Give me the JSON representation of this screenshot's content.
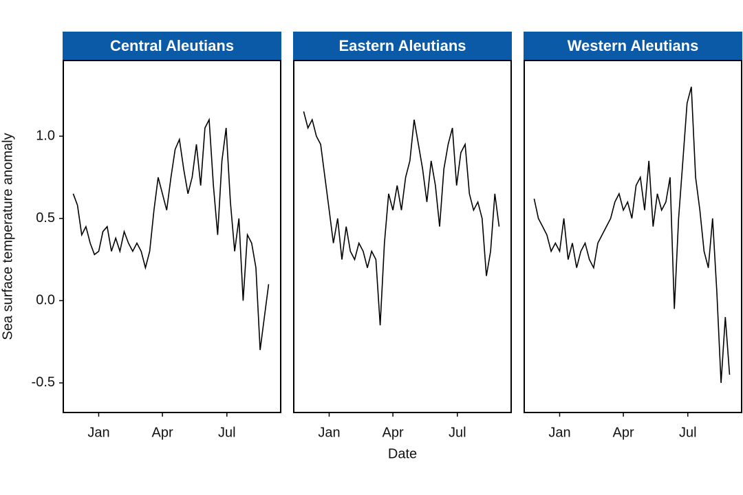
{
  "chart_data": [
    {
      "type": "line",
      "title": "Central Aleutians",
      "color": "#000000",
      "strip_color": "#0a5aa8",
      "x": [
        -36,
        -30,
        -24,
        -18,
        -12,
        -6,
        0,
        6,
        12,
        18,
        24,
        30,
        36,
        42,
        48,
        54,
        60,
        66,
        72,
        78,
        84,
        90,
        96,
        102,
        108,
        114,
        120,
        126,
        132,
        138,
        144,
        150,
        156,
        162,
        168,
        174,
        180,
        186,
        192,
        198,
        204,
        210,
        216,
        222,
        228,
        234,
        240
      ],
      "values": [
        0.65,
        0.58,
        0.4,
        0.45,
        0.35,
        0.28,
        0.3,
        0.42,
        0.45,
        0.3,
        0.38,
        0.3,
        0.42,
        0.35,
        0.3,
        0.35,
        0.3,
        0.2,
        0.3,
        0.55,
        0.75,
        0.65,
        0.55,
        0.75,
        0.92,
        0.98,
        0.8,
        0.65,
        0.75,
        0.95,
        0.7,
        1.05,
        1.1,
        0.7,
        0.4,
        0.85,
        1.05,
        0.6,
        0.3,
        0.5,
        0.0,
        0.4,
        0.35,
        0.2,
        -0.3,
        -0.1,
        0.1
      ],
      "xlim": [
        -50,
        257
      ],
      "xticks": [
        {
          "value": 0,
          "label": "Jan"
        },
        {
          "value": 90,
          "label": "Apr"
        },
        {
          "value": 181,
          "label": "Jul"
        }
      ],
      "ylim": [
        -0.68,
        1.46
      ],
      "yticks": [
        {
          "value": -0.5,
          "label": "-0.5"
        },
        {
          "value": 0,
          "label": "0.0"
        },
        {
          "value": 0.5,
          "label": "0.5"
        },
        {
          "value": 1,
          "label": "1.0"
        }
      ]
    },
    {
      "type": "line",
      "title": "Eastern Aleutians",
      "color": "#000000",
      "strip_color": "#0a5aa8",
      "x": [
        -36,
        -30,
        -24,
        -18,
        -12,
        -6,
        0,
        6,
        12,
        18,
        24,
        30,
        36,
        42,
        48,
        54,
        60,
        66,
        72,
        78,
        84,
        90,
        96,
        102,
        108,
        114,
        120,
        126,
        132,
        138,
        144,
        150,
        156,
        162,
        168,
        174,
        180,
        186,
        192,
        198,
        204,
        210,
        216,
        222,
        228,
        234,
        240
      ],
      "values": [
        1.15,
        1.05,
        1.1,
        1.0,
        0.95,
        0.75,
        0.55,
        0.35,
        0.5,
        0.25,
        0.45,
        0.3,
        0.25,
        0.35,
        0.3,
        0.2,
        0.3,
        0.25,
        -0.15,
        0.35,
        0.65,
        0.55,
        0.7,
        0.55,
        0.75,
        0.85,
        1.1,
        0.95,
        0.8,
        0.6,
        0.85,
        0.7,
        0.45,
        0.8,
        0.95,
        1.05,
        0.7,
        0.9,
        0.95,
        0.65,
        0.55,
        0.6,
        0.5,
        0.15,
        0.3,
        0.65,
        0.45
      ],
      "xlim": [
        -50,
        257
      ],
      "xticks": [
        {
          "value": 0,
          "label": "Jan"
        },
        {
          "value": 90,
          "label": "Apr"
        },
        {
          "value": 181,
          "label": "Jul"
        }
      ],
      "ylim": [
        -0.68,
        1.46
      ]
    },
    {
      "type": "line",
      "title": "Western Aleutians",
      "color": "#000000",
      "strip_color": "#0a5aa8",
      "x": [
        -36,
        -30,
        -24,
        -18,
        -12,
        -6,
        0,
        6,
        12,
        18,
        24,
        30,
        36,
        42,
        48,
        54,
        60,
        66,
        72,
        78,
        84,
        90,
        96,
        102,
        108,
        114,
        120,
        126,
        132,
        138,
        144,
        150,
        156,
        162,
        168,
        174,
        180,
        186,
        192,
        198,
        204,
        210,
        216,
        222,
        228,
        234,
        240
      ],
      "values": [
        0.62,
        0.5,
        0.45,
        0.4,
        0.3,
        0.35,
        0.3,
        0.5,
        0.25,
        0.35,
        0.2,
        0.3,
        0.35,
        0.25,
        0.2,
        0.35,
        0.4,
        0.45,
        0.5,
        0.6,
        0.65,
        0.55,
        0.6,
        0.5,
        0.7,
        0.75,
        0.55,
        0.85,
        0.45,
        0.65,
        0.55,
        0.6,
        0.75,
        -0.05,
        0.5,
        0.85,
        1.2,
        1.3,
        0.75,
        0.55,
        0.3,
        0.2,
        0.5,
        0.05,
        -0.5,
        -0.1,
        -0.45
      ],
      "xlim": [
        -50,
        257
      ],
      "xticks": [
        {
          "value": 0,
          "label": "Jan"
        },
        {
          "value": 90,
          "label": "Apr"
        },
        {
          "value": 181,
          "label": "Jul"
        }
      ],
      "ylim": [
        -0.68,
        1.46
      ]
    }
  ],
  "xlabel": "Date",
  "ylabel": "Sea surface temperature anomaly"
}
